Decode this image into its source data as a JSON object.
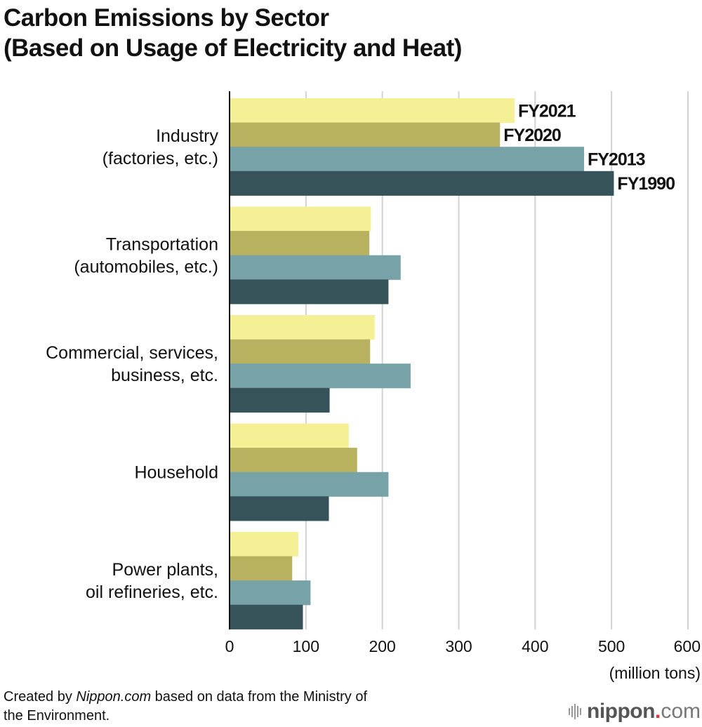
{
  "title_line1": "Carbon Emissions by Sector",
  "title_line2": "(Based on Usage of Electricity and Heat)",
  "chart_data": {
    "type": "bar",
    "orientation": "horizontal",
    "title": "Carbon Emissions by Sector (Based on Usage of Electricity and Heat)",
    "xlabel": "(million tons)",
    "ylabel": "",
    "xlim": [
      0,
      600
    ],
    "xticks": [
      0,
      100,
      200,
      300,
      400,
      500,
      600
    ],
    "grid": true,
    "legend_placement": "inline labels at end of Industry bars",
    "categories": [
      [
        "Industry",
        "(factories, etc.)"
      ],
      [
        "Transportation",
        "(automobiles, etc.)"
      ],
      [
        "Commercial, services,",
        "business, etc."
      ],
      [
        "Household"
      ],
      [
        "Power plants,",
        "oil refineries, etc."
      ]
    ],
    "series": [
      {
        "name": "FY2021",
        "color": "#f5f096",
        "values": [
          373,
          185,
          190,
          156,
          90
        ]
      },
      {
        "name": "FY2020",
        "color": "#b8b260",
        "values": [
          354,
          183,
          184,
          167,
          82
        ]
      },
      {
        "name": "FY2013",
        "color": "#77a2a7",
        "values": [
          464,
          224,
          237,
          208,
          106
        ]
      },
      {
        "name": "FY1990",
        "color": "#355358",
        "values": [
          503,
          208,
          131,
          130,
          96
        ]
      }
    ]
  },
  "footer": {
    "source_prefix": "Created by ",
    "source_brand": "Nippon.com",
    "source_suffix": " based on data from the Ministry of",
    "source_line2": "the Environment.",
    "logo_brand": "nippon",
    "logo_dot": ".",
    "logo_tld": "com"
  }
}
